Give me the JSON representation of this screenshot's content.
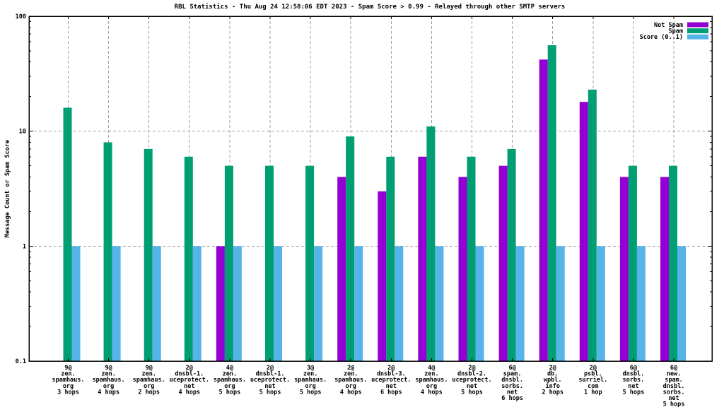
{
  "title": "RBL Statistics - Thu Aug 24 12:58:06 EDT 2023 - Spam Score > 0.99 - Relayed through other SMTP servers",
  "chart_data": {
    "type": "bar",
    "title": "RBL Statistics - Thu Aug 24 12:58:06 EDT 2023 - Spam Score > 0.99 - Relayed through other SMTP servers",
    "ylabel": "Message Count or Spam Score",
    "xlabel": "",
    "y_scale": "log10",
    "ylim": [
      0.1,
      100
    ],
    "ytick_labels": [
      "100",
      "10",
      "1",
      "0.1"
    ],
    "ytick_values": [
      100,
      10,
      1,
      0.1
    ],
    "grid": true,
    "legend_position": "inside top-right",
    "categories": [
      [
        "9@",
        "zen.",
        "spamhaus.",
        "org",
        "3 hops"
      ],
      [
        "9@",
        "zen.",
        "spamhaus.",
        "org",
        "4 hops"
      ],
      [
        "9@",
        "zen.",
        "spamhaus.",
        "org",
        "2 hops"
      ],
      [
        "2@",
        "dnsbl-1.",
        "uceprotect.",
        "net",
        "4 hops"
      ],
      [
        "4@",
        "zen.",
        "spamhaus.",
        "org",
        "5 hops"
      ],
      [
        "2@",
        "dnsbl-1.",
        "uceprotect.",
        "net",
        "5 hops"
      ],
      [
        "3@",
        "zen.",
        "spamhaus.",
        "org",
        "5 hops"
      ],
      [
        "2@",
        "zen.",
        "spamhaus.",
        "org",
        "4 hops"
      ],
      [
        "2@",
        "dnsbl-3.",
        "uceprotect.",
        "net",
        "6 hops"
      ],
      [
        "4@",
        "zen.",
        "spamhaus.",
        "org",
        "4 hops"
      ],
      [
        "2@",
        "dnsbl-2.",
        "uceprotect.",
        "net",
        "5 hops"
      ],
      [
        "6@",
        "spam.",
        "dnsbl.",
        "sorbs.",
        "net",
        "6 hops"
      ],
      [
        "2@",
        "db.",
        "wpbl.",
        "info",
        "2 hops"
      ],
      [
        "2@",
        "psbl.",
        "surriel.",
        "com",
        "1 hop"
      ],
      [
        "6@",
        "dnsbl.",
        "sorbs.",
        "net",
        "5 hops"
      ],
      [
        "6@",
        "new.",
        "spam.",
        "dnsbl.",
        "sorbs.",
        "net",
        "5 hops"
      ]
    ],
    "series": [
      {
        "name": "Not Spam",
        "color": "#9400d3",
        "values": [
          0,
          0,
          0,
          0,
          1,
          0,
          0,
          4,
          3,
          6,
          4,
          5,
          42,
          18,
          4,
          4
        ]
      },
      {
        "name": "Spam",
        "color": "#009e73",
        "values": [
          16,
          8,
          7,
          6,
          5,
          5,
          5,
          9,
          6,
          11,
          6,
          7,
          56,
          23,
          5,
          5
        ]
      },
      {
        "name": "Score (0..1)",
        "color": "#56b4e9",
        "values": [
          1,
          1,
          1,
          1,
          1,
          1,
          1,
          1,
          1,
          1,
          1,
          1,
          1,
          1,
          1,
          1
        ]
      }
    ],
    "grid_color": "#a0a0a0",
    "axis_color": "#000000"
  }
}
